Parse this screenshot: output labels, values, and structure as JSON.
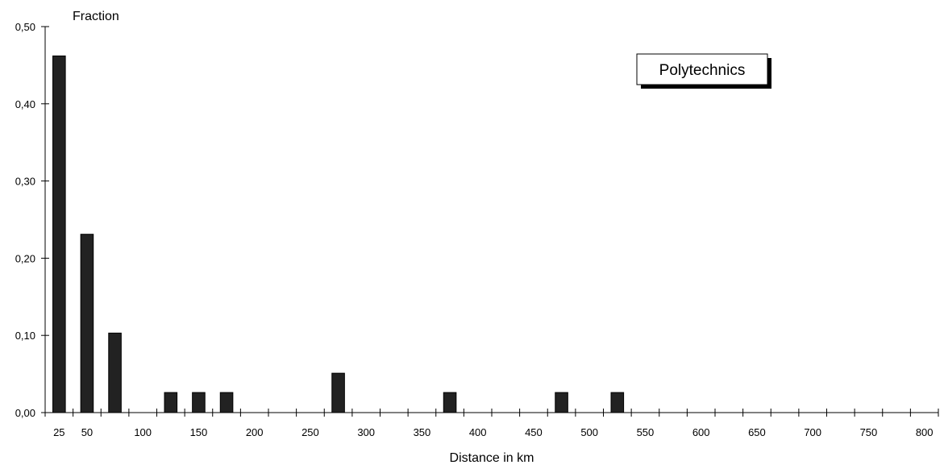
{
  "chart_data": {
    "type": "bar",
    "title": "Polytechnics",
    "ylabel": "Fraction",
    "xlabel": "Distance in km",
    "ylim": [
      0,
      0.5
    ],
    "yticks": [
      "0,00",
      "0,10",
      "0,20",
      "0,30",
      "0,40",
      "0,50"
    ],
    "yticks_values": [
      0,
      0.1,
      0.2,
      0.3,
      0.4,
      0.5
    ],
    "categories": [
      "25",
      "50",
      "",
      "100",
      "",
      "150",
      "",
      "200",
      "",
      "250",
      "",
      "300",
      "",
      "350",
      "",
      "400",
      "",
      "450",
      "",
      "500",
      "",
      "550",
      "",
      "600",
      "",
      "650",
      "",
      "700",
      "",
      "750",
      "",
      "800"
    ],
    "values": [
      0.462,
      0.231,
      0.103,
      0.0,
      0.026,
      0.026,
      0.026,
      0.0,
      0.0,
      0.0,
      0.051,
      0.0,
      0.0,
      0.0,
      0.026,
      0.0,
      0.0,
      0.0,
      0.026,
      0.0,
      0.026,
      0.0,
      0.0,
      0.0,
      0.0,
      0.0,
      0.0,
      0.0,
      0.0,
      0.0,
      0.0,
      0.0
    ],
    "grid": false,
    "legend": "top-right",
    "bar_color": "#222222"
  }
}
